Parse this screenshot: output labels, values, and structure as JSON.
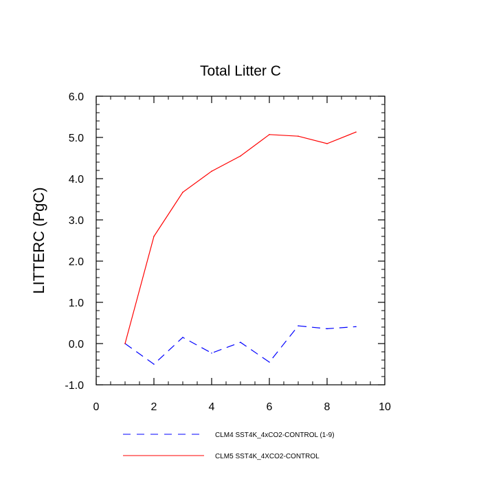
{
  "chart_data": {
    "type": "line",
    "title": "Total Litter C",
    "xlabel": "",
    "ylabel": "LITTERC  (PgC)",
    "xlim": [
      0,
      10
    ],
    "ylim": [
      -1.0,
      6.0
    ],
    "x_ticks": [
      0,
      2,
      4,
      6,
      8,
      10
    ],
    "x_tick_labels": [
      "0",
      "2",
      "4",
      "6",
      "8",
      "10"
    ],
    "y_ticks": [
      -1.0,
      0.0,
      1.0,
      2.0,
      3.0,
      4.0,
      5.0,
      6.0
    ],
    "y_tick_labels": [
      "-1.0",
      "0.0",
      "1.0",
      "2.0",
      "3.0",
      "4.0",
      "5.0",
      "6.0"
    ],
    "grid": false,
    "legend_position": "bottom",
    "series": [
      {
        "name": "CLM4 SST4K_4xCO2-CONTROL (1-9)",
        "color": "#0000ff",
        "dash": "dashed",
        "x": [
          1,
          2,
          3,
          4,
          5,
          6,
          7,
          8,
          9
        ],
        "y": [
          0.0,
          -0.5,
          0.15,
          -0.23,
          0.03,
          -0.45,
          0.43,
          0.36,
          0.41
        ]
      },
      {
        "name": "CLM5 SST4K_4XCO2-CONTROL",
        "color": "#ff0000",
        "dash": "solid",
        "x": [
          1,
          2,
          3,
          4,
          5,
          6,
          7,
          8,
          9
        ],
        "y": [
          0.0,
          2.6,
          3.67,
          4.18,
          4.55,
          5.07,
          5.03,
          4.85,
          5.13
        ]
      }
    ]
  }
}
